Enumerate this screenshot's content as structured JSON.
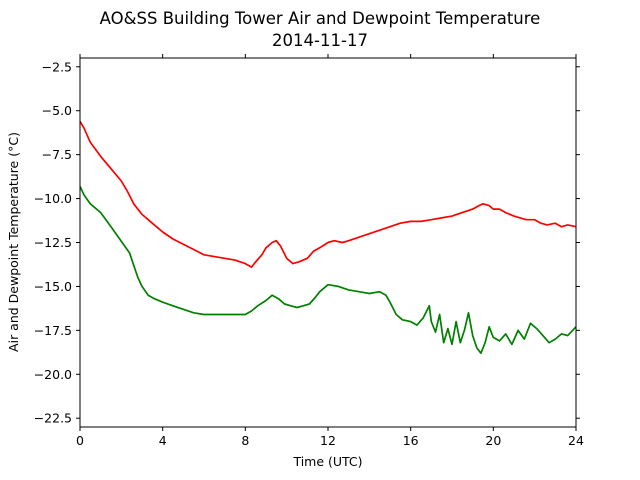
{
  "chart_data": {
    "type": "line",
    "title": "AO&SS Building Tower Air and Dewpoint Temperature",
    "subtitle": "2014-11-17",
    "xlabel": "Time (UTC)",
    "ylabel": "Air and Dewpoint Temperature (°C)",
    "xlim": [
      0,
      24
    ],
    "ylim": [
      -23,
      -2
    ],
    "x_ticks": [
      0,
      4,
      8,
      12,
      16,
      20,
      24
    ],
    "x_tick_labels": [
      "0",
      "4",
      "8",
      "12",
      "16",
      "20",
      "24"
    ],
    "y_ticks": [
      -22.5,
      -20.0,
      -17.5,
      -15.0,
      -12.5,
      -10.0,
      -7.5,
      -5.0,
      -2.5
    ],
    "y_tick_labels": [
      "−22.5",
      "−20.0",
      "−17.5",
      "−15.0",
      "−12.5",
      "−10.0",
      "−7.5",
      "−5.0",
      "−2.5"
    ],
    "grid": false,
    "series": [
      {
        "color": "#ff0000",
        "x": [
          0,
          0.2,
          0.5,
          1.0,
          1.5,
          2.0,
          2.3,
          2.6,
          3.0,
          3.5,
          4.0,
          4.5,
          5.0,
          5.5,
          6.0,
          6.5,
          7.0,
          7.5,
          8.0,
          8.3,
          8.5,
          8.8,
          9.0,
          9.3,
          9.5,
          9.7,
          10.0,
          10.3,
          10.6,
          11.0,
          11.3,
          11.6,
          12.0,
          12.3,
          12.7,
          13.0,
          13.5,
          14.0,
          14.5,
          15.0,
          15.5,
          16.0,
          16.5,
          17.0,
          17.5,
          18.0,
          18.5,
          19.0,
          19.3,
          19.5,
          19.8,
          20.0,
          20.3,
          20.6,
          21.0,
          21.3,
          21.6,
          22.0,
          22.3,
          22.6,
          23.0,
          23.3,
          23.6,
          24.0
        ],
        "y": [
          -5.6,
          -6.0,
          -6.8,
          -7.6,
          -8.3,
          -9.0,
          -9.6,
          -10.3,
          -10.9,
          -11.4,
          -11.9,
          -12.3,
          -12.6,
          -12.9,
          -13.2,
          -13.3,
          -13.4,
          -13.5,
          -13.7,
          -13.9,
          -13.6,
          -13.2,
          -12.8,
          -12.5,
          -12.4,
          -12.7,
          -13.4,
          -13.7,
          -13.6,
          -13.4,
          -13.0,
          -12.8,
          -12.5,
          -12.4,
          -12.5,
          -12.4,
          -12.2,
          -12.0,
          -11.8,
          -11.6,
          -11.4,
          -11.3,
          -11.3,
          -11.2,
          -11.1,
          -11.0,
          -10.8,
          -10.6,
          -10.4,
          -10.3,
          -10.4,
          -10.6,
          -10.6,
          -10.8,
          -11.0,
          -11.1,
          -11.2,
          -11.2,
          -11.4,
          -11.5,
          -11.4,
          -11.6,
          -11.5,
          -11.6
        ]
      },
      {
        "color": "#008000",
        "x": [
          0,
          0.2,
          0.5,
          1.0,
          1.5,
          1.8,
          2.1,
          2.4,
          2.6,
          2.8,
          3.0,
          3.3,
          3.6,
          4.0,
          4.5,
          5.0,
          5.5,
          6.0,
          6.5,
          7.0,
          7.5,
          8.0,
          8.3,
          8.6,
          9.0,
          9.3,
          9.6,
          9.9,
          10.2,
          10.5,
          10.8,
          11.1,
          11.4,
          11.6,
          11.8,
          12.0,
          12.5,
          13.0,
          13.5,
          14.0,
          14.5,
          14.8,
          15.0,
          15.3,
          15.6,
          16.0,
          16.3,
          16.6,
          16.9,
          17.0,
          17.2,
          17.4,
          17.6,
          17.8,
          18.0,
          18.2,
          18.4,
          18.6,
          18.8,
          19.0,
          19.2,
          19.4,
          19.6,
          19.8,
          20.0,
          20.3,
          20.6,
          20.9,
          21.2,
          21.5,
          21.8,
          22.1,
          22.4,
          22.7,
          23.0,
          23.3,
          23.6,
          24.0
        ],
        "y": [
          -9.3,
          -9.8,
          -10.3,
          -10.8,
          -11.6,
          -12.1,
          -12.6,
          -13.1,
          -13.8,
          -14.5,
          -15.0,
          -15.5,
          -15.7,
          -15.9,
          -16.1,
          -16.3,
          -16.5,
          -16.6,
          -16.6,
          -16.6,
          -16.6,
          -16.6,
          -16.4,
          -16.1,
          -15.8,
          -15.5,
          -15.7,
          -16.0,
          -16.1,
          -16.2,
          -16.1,
          -16.0,
          -15.6,
          -15.3,
          -15.1,
          -14.9,
          -15.0,
          -15.2,
          -15.3,
          -15.4,
          -15.3,
          -15.5,
          -15.9,
          -16.6,
          -16.9,
          -17.0,
          -17.2,
          -16.8,
          -16.1,
          -17.0,
          -17.6,
          -16.6,
          -18.2,
          -17.4,
          -18.3,
          -17.0,
          -18.2,
          -17.5,
          -16.5,
          -17.8,
          -18.5,
          -18.8,
          -18.2,
          -17.3,
          -17.9,
          -18.1,
          -17.7,
          -18.3,
          -17.5,
          -18.0,
          -17.1,
          -17.4,
          -17.8,
          -18.2,
          -18.0,
          -17.7,
          -17.8,
          -17.3
        ]
      }
    ]
  }
}
